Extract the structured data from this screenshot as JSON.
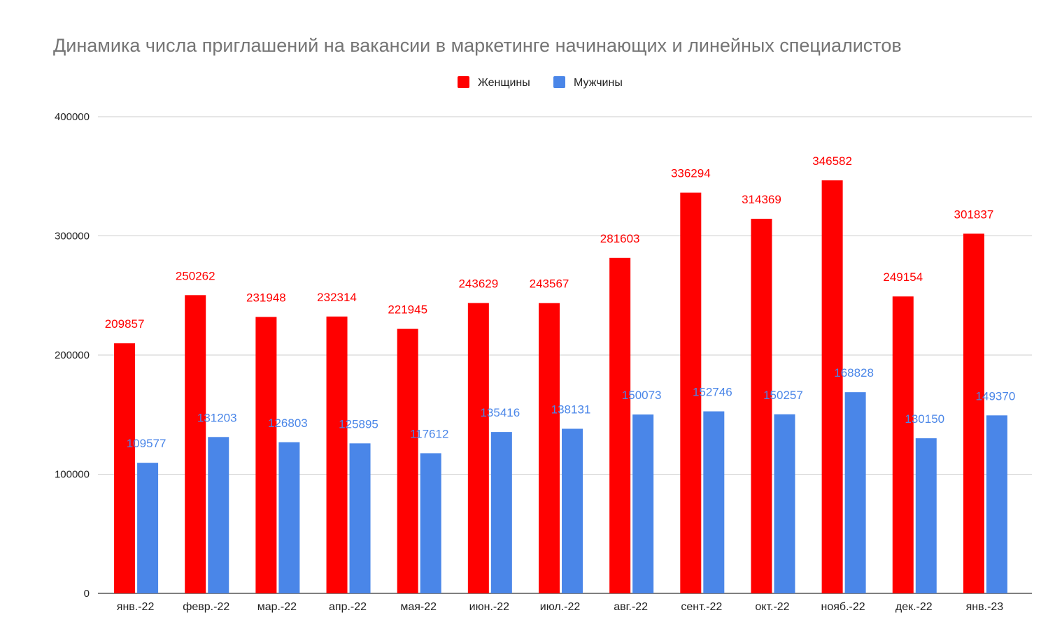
{
  "chart_data": {
    "type": "bar",
    "title": "Динамика числа приглашений на вакансии в маркетинге начинающих и линейных специалистов",
    "xlabel": "",
    "ylabel": "",
    "ylim": [
      0,
      400000
    ],
    "yticks": [
      0,
      100000,
      200000,
      300000,
      400000
    ],
    "ytick_labels": [
      "0",
      "100000",
      "200000",
      "300000",
      "400000"
    ],
    "grid": true,
    "legend_position": "top-center",
    "categories": [
      "янв.-22",
      "февр.-22",
      "мар.-22",
      "апр.-22",
      "мая-22",
      "июн.-22",
      "июл.-22",
      "авг.-22",
      "сент.-22",
      "окт.-22",
      "нояб.-22",
      "дек.-22",
      "янв.-23"
    ],
    "series": [
      {
        "name": "Женщины",
        "color": "#ff0000",
        "values": [
          209857,
          250262,
          231948,
          232314,
          221945,
          243629,
          243567,
          281603,
          336294,
          314369,
          346582,
          249154,
          301837
        ],
        "labels": [
          "209857",
          "250262",
          "231948",
          "232314",
          "221945",
          "243629",
          "243567",
          "281603",
          "336294",
          "314369",
          "346582",
          "249154",
          "301837"
        ]
      },
      {
        "name": "Мужчины",
        "color": "#4a86e8",
        "values": [
          109577,
          131203,
          126803,
          125895,
          117612,
          135416,
          138131,
          150073,
          152746,
          150257,
          168828,
          130150,
          149370
        ],
        "labels": [
          "109577",
          "131203",
          "126803",
          "125895",
          "117612",
          "135416",
          "138131",
          "150073",
          "152746",
          "150257",
          "168828",
          "130150",
          "149370"
        ]
      }
    ]
  }
}
